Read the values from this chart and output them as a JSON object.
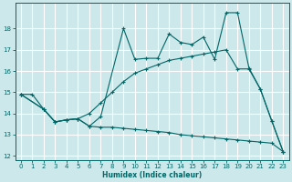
{
  "xlabel": "Humidex (Indice chaleur)",
  "bg_color": "#cce8eb",
  "grid_color": "#ffffff",
  "line_color": "#006666",
  "xlim": [
    -0.5,
    23.5
  ],
  "ylim": [
    11.8,
    19.2
  ],
  "xticks": [
    0,
    1,
    2,
    3,
    4,
    5,
    6,
    7,
    8,
    9,
    10,
    11,
    12,
    13,
    14,
    15,
    16,
    17,
    18,
    19,
    20,
    21,
    22,
    23
  ],
  "yticks": [
    12,
    13,
    14,
    15,
    16,
    17,
    18
  ],
  "line1_x": [
    0,
    2,
    3,
    4,
    5,
    6,
    7,
    9,
    10,
    11,
    12,
    13,
    14,
    15,
    16,
    17,
    18,
    19,
    20,
    21,
    22,
    23
  ],
  "line1_y": [
    14.9,
    14.2,
    13.6,
    13.7,
    13.75,
    13.4,
    13.85,
    18.0,
    16.55,
    16.6,
    16.6,
    17.75,
    17.35,
    17.25,
    17.6,
    16.55,
    18.75,
    18.75,
    16.15,
    15.15,
    13.65,
    12.2
  ],
  "line2_x": [
    0,
    2,
    3,
    4,
    5,
    6,
    7,
    8,
    9,
    10,
    11,
    12,
    13,
    14,
    15,
    16,
    17,
    18,
    19,
    20,
    21,
    22,
    23
  ],
  "line2_y": [
    14.9,
    14.2,
    13.6,
    13.7,
    13.75,
    14.0,
    14.5,
    15.0,
    15.5,
    15.9,
    16.1,
    16.3,
    16.5,
    16.6,
    16.7,
    16.8,
    16.9,
    17.0,
    16.1,
    16.1,
    15.15,
    13.65,
    12.2
  ],
  "line3_x": [
    0,
    1,
    2,
    3,
    4,
    5,
    6,
    7,
    8,
    9,
    10,
    11,
    12,
    13,
    14,
    15,
    16,
    17,
    18,
    19,
    20,
    21,
    22,
    23
  ],
  "line3_y": [
    14.9,
    14.9,
    14.2,
    13.6,
    13.7,
    13.75,
    13.4,
    13.35,
    13.35,
    13.3,
    13.25,
    13.2,
    13.15,
    13.1,
    13.0,
    12.95,
    12.9,
    12.85,
    12.8,
    12.75,
    12.7,
    12.65,
    12.6,
    12.2
  ]
}
